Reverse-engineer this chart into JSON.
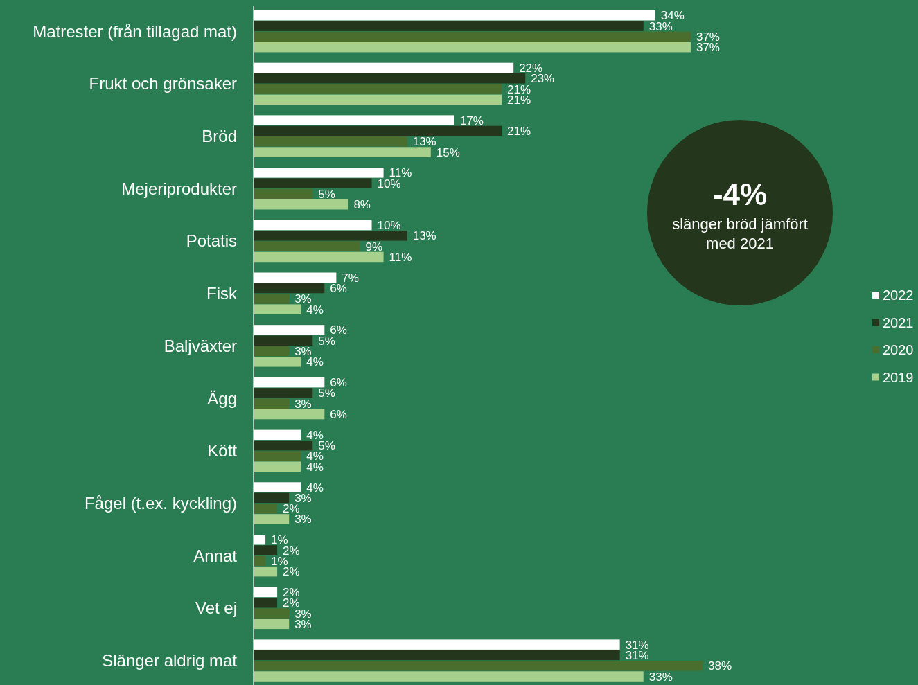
{
  "chart_data": {
    "type": "bar",
    "orientation": "horizontal",
    "categories": [
      "Matrester (från tillagad mat)",
      "Frukt och grönsaker",
      "Bröd",
      "Mejeriprodukter",
      "Potatis",
      "Fisk",
      "Baljväxter",
      "Ägg",
      "Kött",
      "Fågel (t.ex. kyckling)",
      "Annat",
      "Vet ej",
      "Slänger aldrig mat"
    ],
    "series": [
      {
        "name": "2022",
        "color": "#ffffff",
        "values": [
          34,
          22,
          17,
          11,
          10,
          7,
          6,
          6,
          4,
          4,
          1,
          2,
          31
        ],
        "value_labels": [
          "34%",
          "22%",
          "17%",
          "11%",
          "10%",
          "7%",
          "6%",
          "6%",
          "4%",
          "4%",
          "1%",
          "2%",
          "31%"
        ]
      },
      {
        "name": "2021",
        "color": "#24361c",
        "values": [
          33,
          23,
          21,
          10,
          13,
          6,
          5,
          5,
          5,
          3,
          2,
          2,
          31
        ],
        "value_labels": [
          "33%",
          "23%",
          "21%",
          "10%",
          "13%",
          "6%",
          "5%",
          "5%",
          "5%",
          "3%",
          "2%",
          "2%",
          "31%"
        ]
      },
      {
        "name": "2020",
        "color": "#4a6e2e",
        "values": [
          37,
          21,
          13,
          5,
          9,
          3,
          3,
          3,
          4,
          2,
          1,
          3,
          38
        ],
        "value_labels": [
          "37%",
          "21%",
          "13%",
          "5%",
          "9%",
          "3%",
          "3%",
          "3%",
          "4%",
          "2%",
          "1%",
          "3%",
          "38%"
        ]
      },
      {
        "name": "2019",
        "color": "#a8d08d",
        "values": [
          37,
          21,
          15,
          8,
          11,
          4,
          4,
          6,
          4,
          3,
          2,
          3,
          33
        ],
        "value_labels": [
          "37%",
          "21%",
          "15%",
          "8%",
          "11%",
          "4%",
          "4%",
          "6%",
          "4%",
          "3%",
          "2%",
          "3%",
          "33%"
        ]
      }
    ],
    "annotations": [
      "-4%",
      "slänger bröd jämfört med 2021"
    ],
    "legend": "right"
  }
}
